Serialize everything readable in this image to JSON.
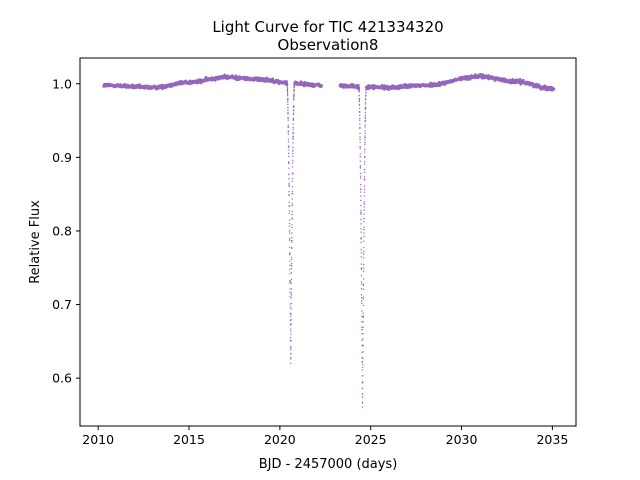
{
  "chart_data": {
    "type": "scatter",
    "title": "Light Curve for TIC 421334320",
    "subtitle": "Observation8",
    "xlabel": "BJD - 2457000 (days)",
    "ylabel": "Relative Flux",
    "xlim": [
      2009.0,
      2036.3
    ],
    "ylim": [
      0.535,
      1.035
    ],
    "xticks": [
      2010,
      2015,
      2020,
      2025,
      2030,
      2035
    ],
    "yticks": [
      0.6,
      0.7,
      0.8,
      0.9,
      1.0
    ],
    "xtick_labels": [
      "2010",
      "2015",
      "2020",
      "2025",
      "2030",
      "2035"
    ],
    "ytick_labels": [
      "0.6",
      "0.7",
      "0.8",
      "0.9",
      "1.0"
    ],
    "grid": false,
    "marker_color": "#9467bd",
    "series": [
      {
        "name": "",
        "segments": [
          {
            "x_start": 2010.3,
            "x_end": 2022.3
          },
          {
            "x_start": 2023.3,
            "x_end": 2035.1
          }
        ],
        "baseline": [
          {
            "x": 2010.3,
            "y": 0.998
          },
          {
            "x": 2013.0,
            "y": 0.995
          },
          {
            "x": 2015.0,
            "y": 1.002
          },
          {
            "x": 2017.0,
            "y": 1.009
          },
          {
            "x": 2019.0,
            "y": 1.006
          },
          {
            "x": 2020.5,
            "y": 1.001
          },
          {
            "x": 2022.3,
            "y": 0.998
          },
          {
            "x": 2023.3,
            "y": 0.997
          },
          {
            "x": 2026.0,
            "y": 0.995
          },
          {
            "x": 2028.0,
            "y": 0.998
          },
          {
            "x": 2031.0,
            "y": 1.01
          },
          {
            "x": 2033.0,
            "y": 1.003
          },
          {
            "x": 2035.1,
            "y": 0.993
          }
        ],
        "eclipses": [
          {
            "x_center": 2020.6,
            "half_width": 0.2,
            "min_flux": 0.621
          },
          {
            "x_center": 2024.55,
            "half_width": 0.2,
            "min_flux": 0.56
          }
        ]
      }
    ]
  }
}
